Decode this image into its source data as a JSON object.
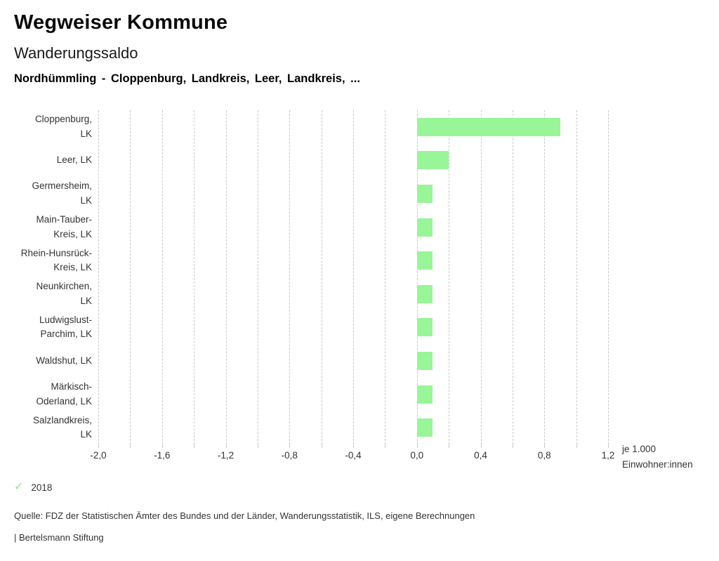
{
  "header": {
    "title": "Wegweiser Kommune",
    "subtitle": "Wanderungssaldo",
    "selection": "Nordhümmling - Cloppenburg, Landkreis, Leer, Landkreis, ..."
  },
  "chart_data": {
    "type": "bar",
    "orientation": "horizontal",
    "title": "Wanderungssaldo",
    "xlabel": "je 1.000 Einwohner:innen",
    "x_unit_lines": [
      "je 1.000",
      "Einwohner:innen"
    ],
    "categories": [
      "Cloppenburg, LK",
      "Leer, LK",
      "Germersheim, LK",
      "Main-Tauber-Kreis, LK",
      "Rhein-Hunsrück-Kreis, LK",
      "Neunkirchen, LK",
      "Ludwigslust-Parchim, LK",
      "Waldshut, LK",
      "Märkisch-Oderland, LK",
      "Salzlandkreis, LK"
    ],
    "category_label_lines": [
      [
        "Cloppenburg,",
        "LK"
      ],
      [
        "Leer, LK"
      ],
      [
        "Germersheim,",
        "LK"
      ],
      [
        "Main-Tauber-",
        "Kreis, LK"
      ],
      [
        "Rhein-Hunsrück-",
        "Kreis, LK"
      ],
      [
        "Neunkirchen,",
        "LK"
      ],
      [
        "Ludwigslust-",
        "Parchim, LK"
      ],
      [
        "Waldshut, LK"
      ],
      [
        "Märkisch-",
        "Oderland, LK"
      ],
      [
        "Salzlandkreis,",
        "LK"
      ]
    ],
    "series": [
      {
        "name": "2018",
        "color": "#98f598",
        "values": [
          0.9,
          0.2,
          0.1,
          0.1,
          0.1,
          0.1,
          0.1,
          0.1,
          0.1,
          0.1
        ]
      }
    ],
    "xlim": [
      -2.0,
      1.2
    ],
    "x_major_step": 0.4,
    "x_minor_step": 0.2,
    "x_tick_labels": [
      "-2,0",
      "-1,6",
      "-1,2",
      "-0,8",
      "-0,4",
      "0,0",
      "0,4",
      "0,8",
      "1,2"
    ],
    "grid": "vertical-dashed",
    "legend_position": "bottom-left"
  },
  "legend": {
    "items": [
      {
        "label": "2018",
        "symbol": "checkmark",
        "color": "#8fe08f"
      }
    ]
  },
  "footer": {
    "source": "Quelle: FDZ der Statistischen Ämter des Bundes und der Länder, Wanderungsstatistik, ILS, eigene Berechnungen",
    "attribution": "| Bertelsmann Stiftung"
  }
}
